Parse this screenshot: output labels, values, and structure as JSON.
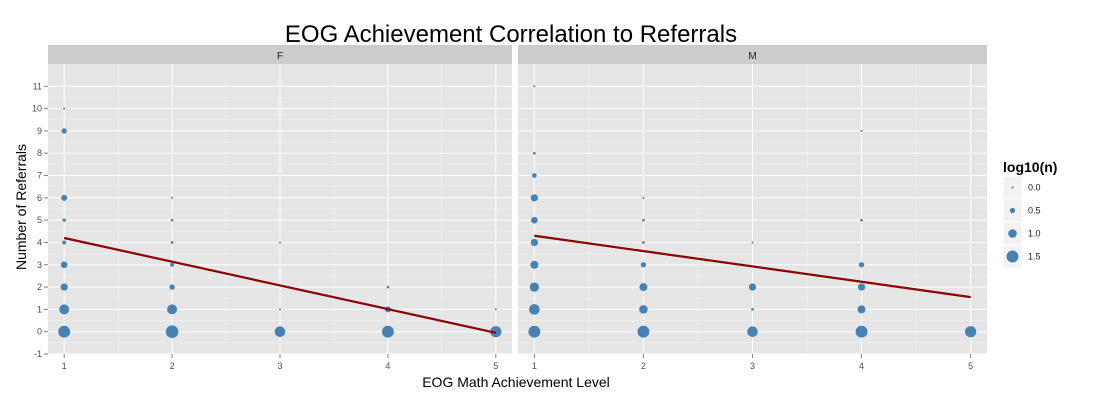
{
  "chart_data": {
    "type": "scatter",
    "title": "EOG Achievement Correlation to Referrals",
    "xlabel": "EOG Math Achievement Level",
    "ylabel": "Number of Referrals",
    "xlim": [
      0.85,
      5.15
    ],
    "ylim": [
      -1,
      12
    ],
    "x_ticks": [
      1,
      2,
      3,
      4,
      5
    ],
    "y_ticks": [
      -1,
      0,
      1,
      2,
      3,
      4,
      5,
      6,
      7,
      8,
      9,
      10,
      11
    ],
    "grid": true,
    "legend": {
      "title": "log10(n)",
      "placement": "right",
      "entries": [
        {
          "label": "0.0",
          "value": 0.0
        },
        {
          "label": "0.5",
          "value": 0.5
        },
        {
          "label": "1.0",
          "value": 1.0
        },
        {
          "label": "1.5",
          "value": 1.5
        }
      ]
    },
    "point_color": "#4682b4",
    "trend_color": "#8b0000",
    "panel_bg": "#e5e5e5",
    "strip_bg": "#cccccc",
    "facets": [
      {
        "label": "F",
        "points": [
          {
            "x": 1,
            "y": 0,
            "log10n": 1.5
          },
          {
            "x": 1,
            "y": 1,
            "log10n": 1.2
          },
          {
            "x": 1,
            "y": 2,
            "log10n": 0.8
          },
          {
            "x": 1,
            "y": 3,
            "log10n": 0.7
          },
          {
            "x": 1,
            "y": 4,
            "log10n": 0.3
          },
          {
            "x": 1,
            "y": 5,
            "log10n": 0.2
          },
          {
            "x": 1,
            "y": 6,
            "log10n": 0.6
          },
          {
            "x": 1,
            "y": 9,
            "log10n": 0.5
          },
          {
            "x": 1,
            "y": 10,
            "log10n": 0.0
          },
          {
            "x": 2,
            "y": 0,
            "log10n": 1.6
          },
          {
            "x": 2,
            "y": 1,
            "log10n": 1.2
          },
          {
            "x": 2,
            "y": 2,
            "log10n": 0.5
          },
          {
            "x": 2,
            "y": 3,
            "log10n": 0.3
          },
          {
            "x": 2,
            "y": 4,
            "log10n": 0.1
          },
          {
            "x": 2,
            "y": 5,
            "log10n": 0.1
          },
          {
            "x": 2,
            "y": 6,
            "log10n": 0.0
          },
          {
            "x": 3,
            "y": 0,
            "log10n": 1.3
          },
          {
            "x": 3,
            "y": 1,
            "log10n": 0.0
          },
          {
            "x": 3,
            "y": 4,
            "log10n": 0.0
          },
          {
            "x": 4,
            "y": 0,
            "log10n": 1.5
          },
          {
            "x": 4,
            "y": 1,
            "log10n": 0.6
          },
          {
            "x": 4,
            "y": 2,
            "log10n": 0.1
          },
          {
            "x": 5,
            "y": 0,
            "log10n": 1.4
          },
          {
            "x": 5,
            "y": 1,
            "log10n": 0.0
          }
        ],
        "trend": {
          "x": [
            1,
            5
          ],
          "y": [
            4.2,
            -0.05
          ]
        }
      },
      {
        "label": "M",
        "points": [
          {
            "x": 1,
            "y": 0,
            "log10n": 1.5
          },
          {
            "x": 1,
            "y": 1,
            "log10n": 1.3
          },
          {
            "x": 1,
            "y": 2,
            "log10n": 1.1
          },
          {
            "x": 1,
            "y": 3,
            "log10n": 0.9
          },
          {
            "x": 1,
            "y": 4,
            "log10n": 0.8
          },
          {
            "x": 1,
            "y": 5,
            "log10n": 0.7
          },
          {
            "x": 1,
            "y": 6,
            "log10n": 0.8
          },
          {
            "x": 1,
            "y": 7,
            "log10n": 0.4
          },
          {
            "x": 1,
            "y": 8,
            "log10n": 0.1
          },
          {
            "x": 1,
            "y": 11,
            "log10n": 0.0
          },
          {
            "x": 2,
            "y": 0,
            "log10n": 1.5
          },
          {
            "x": 2,
            "y": 1,
            "log10n": 1.0
          },
          {
            "x": 2,
            "y": 2,
            "log10n": 0.9
          },
          {
            "x": 2,
            "y": 3,
            "log10n": 0.5
          },
          {
            "x": 2,
            "y": 4,
            "log10n": 0.1
          },
          {
            "x": 2,
            "y": 5,
            "log10n": 0.1
          },
          {
            "x": 2,
            "y": 6,
            "log10n": 0.0
          },
          {
            "x": 3,
            "y": 0,
            "log10n": 1.3
          },
          {
            "x": 3,
            "y": 1,
            "log10n": 0.1
          },
          {
            "x": 3,
            "y": 2,
            "log10n": 0.8
          },
          {
            "x": 3,
            "y": 4,
            "log10n": 0.0
          },
          {
            "x": 4,
            "y": 0,
            "log10n": 1.5
          },
          {
            "x": 4,
            "y": 1,
            "log10n": 0.9
          },
          {
            "x": 4,
            "y": 2,
            "log10n": 0.8
          },
          {
            "x": 4,
            "y": 3,
            "log10n": 0.5
          },
          {
            "x": 4,
            "y": 5,
            "log10n": 0.1
          },
          {
            "x": 4,
            "y": 9,
            "log10n": 0.0
          },
          {
            "x": 5,
            "y": 0,
            "log10n": 1.4
          }
        ],
        "trend": {
          "x": [
            1,
            5
          ],
          "y": [
            4.3,
            1.55
          ]
        }
      }
    ]
  }
}
